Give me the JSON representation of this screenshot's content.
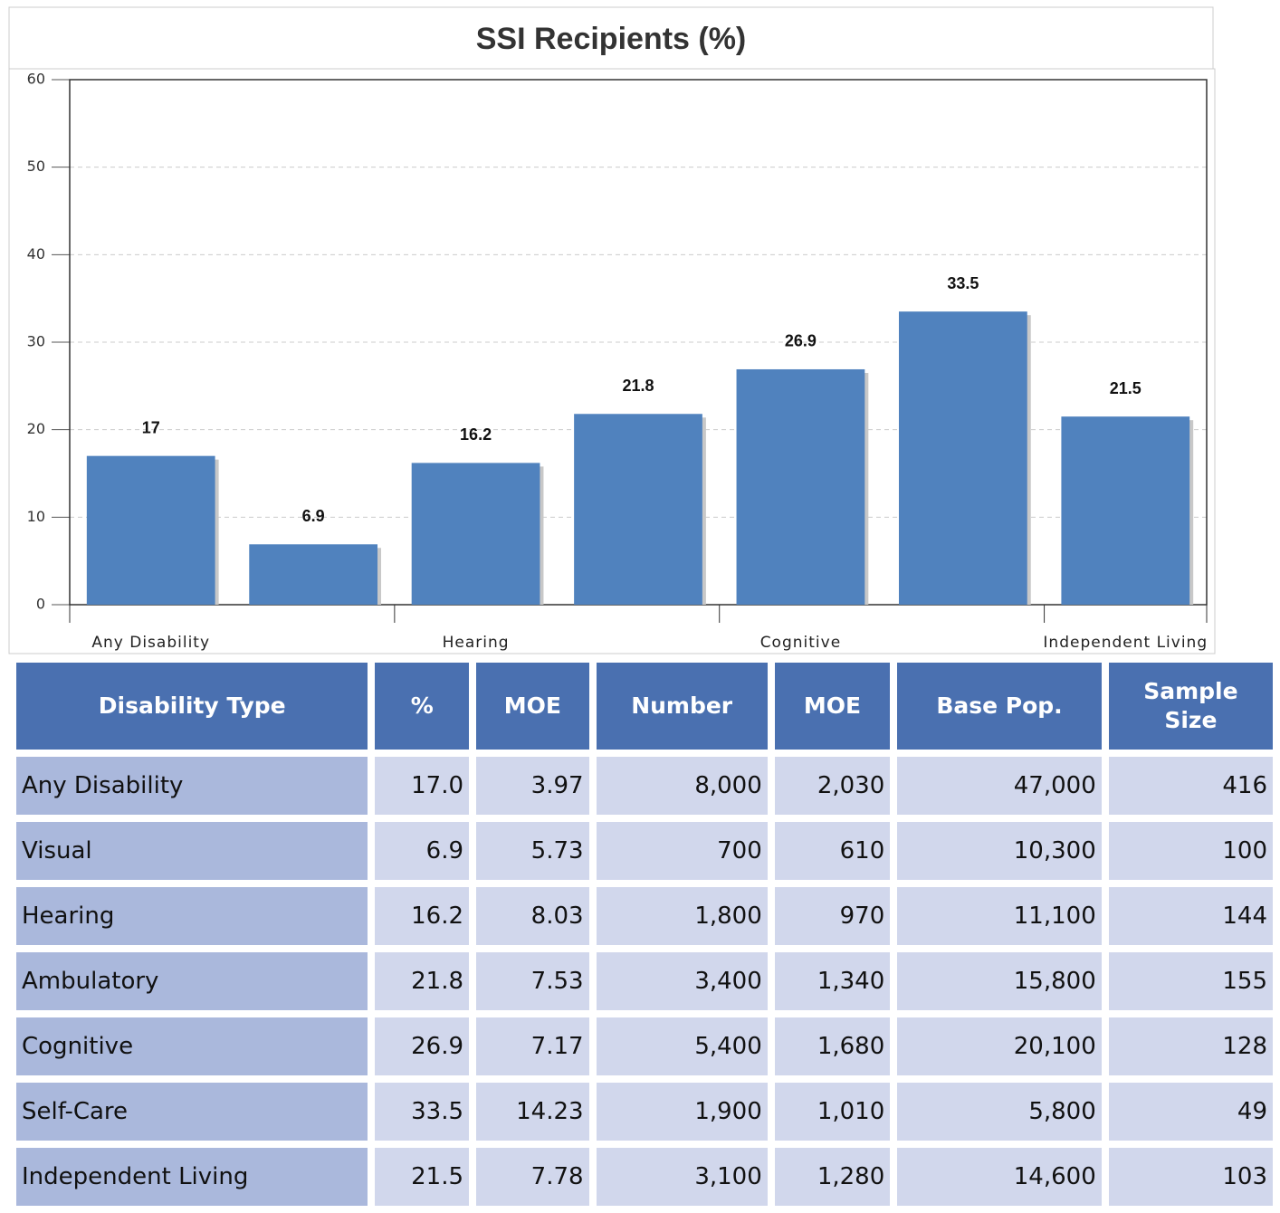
{
  "chart_data": {
    "type": "bar",
    "title": "SSI Recipients (%)",
    "categories": [
      "Any Disability",
      null,
      "Hearing",
      null,
      "Cognitive",
      null,
      "Independent Living"
    ],
    "values": [
      17,
      6.9,
      16.2,
      21.8,
      26.9,
      33.5,
      21.5
    ],
    "color": "#5082be",
    "ylim": [
      0,
      60
    ],
    "yticks": [
      0,
      10,
      20,
      30,
      40,
      50,
      60
    ],
    "grid": true
  },
  "table": {
    "header": [
      "Disability Type",
      "%",
      "MOE",
      "Number",
      "MOE",
      "Base Pop.",
      "Sample Size"
    ],
    "rows": [
      [
        "Any Disability",
        "17.0",
        "3.97",
        "8,000",
        "2,030",
        "47,000",
        "416"
      ],
      [
        "Visual",
        "6.9",
        "5.73",
        "700",
        "610",
        "10,300",
        "100"
      ],
      [
        "Hearing",
        "16.2",
        "8.03",
        "1,800",
        "970",
        "11,100",
        "144"
      ],
      [
        "Ambulatory",
        "21.8",
        "7.53",
        "3,400",
        "1,340",
        "15,800",
        "155"
      ],
      [
        "Cognitive",
        "26.9",
        "7.17",
        "5,400",
        "1,680",
        "20,100",
        "128"
      ],
      [
        "Self-Care",
        "33.5",
        "14.23",
        "1,900",
        "1,010",
        "5,800",
        "49"
      ],
      [
        "Independent Living",
        "21.5",
        "7.78",
        "3,100",
        "1,280",
        "14,600",
        "103"
      ]
    ]
  }
}
